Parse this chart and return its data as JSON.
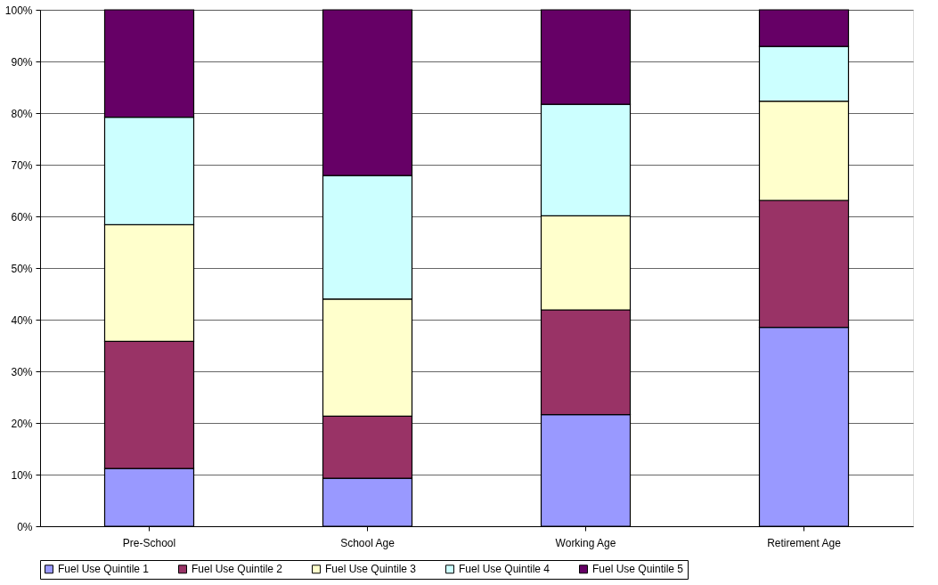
{
  "chart_data": {
    "type": "bar",
    "stacked": true,
    "categories": [
      "Pre-School",
      "School Age",
      "Working Age",
      "Retirement Age"
    ],
    "series": [
      {
        "name": "Fuel Use Quintile 1",
        "color": "#9999ff",
        "values": [
          11.2,
          9.3,
          21.6,
          38.5
        ]
      },
      {
        "name": "Fuel Use Quintile 2",
        "color": "#993366",
        "values": [
          24.6,
          12.0,
          20.3,
          24.6
        ]
      },
      {
        "name": "Fuel Use Quintile 3",
        "color": "#ffffcc",
        "values": [
          22.6,
          22.7,
          18.2,
          19.2
        ]
      },
      {
        "name": "Fuel Use Quintile 4",
        "color": "#ccffff",
        "values": [
          20.8,
          23.9,
          21.6,
          10.6
        ]
      },
      {
        "name": "Fuel Use Quintile 5",
        "color": "#660066",
        "values": [
          20.8,
          32.1,
          18.3,
          7.1
        ]
      }
    ],
    "ylim": [
      0,
      100
    ],
    "yticks": [
      {
        "value": 0,
        "label": "0%"
      },
      {
        "value": 10,
        "label": "10%"
      },
      {
        "value": 20,
        "label": "20%"
      },
      {
        "value": 30,
        "label": "30%"
      },
      {
        "value": 40,
        "label": "40%"
      },
      {
        "value": 50,
        "label": "50%"
      },
      {
        "value": 60,
        "label": "60%"
      },
      {
        "value": 70,
        "label": "70%"
      },
      {
        "value": 80,
        "label": "80%"
      },
      {
        "value": 90,
        "label": "90%"
      },
      {
        "value": 100,
        "label": "100%"
      }
    ],
    "grid": "y",
    "legend": "bottom"
  }
}
